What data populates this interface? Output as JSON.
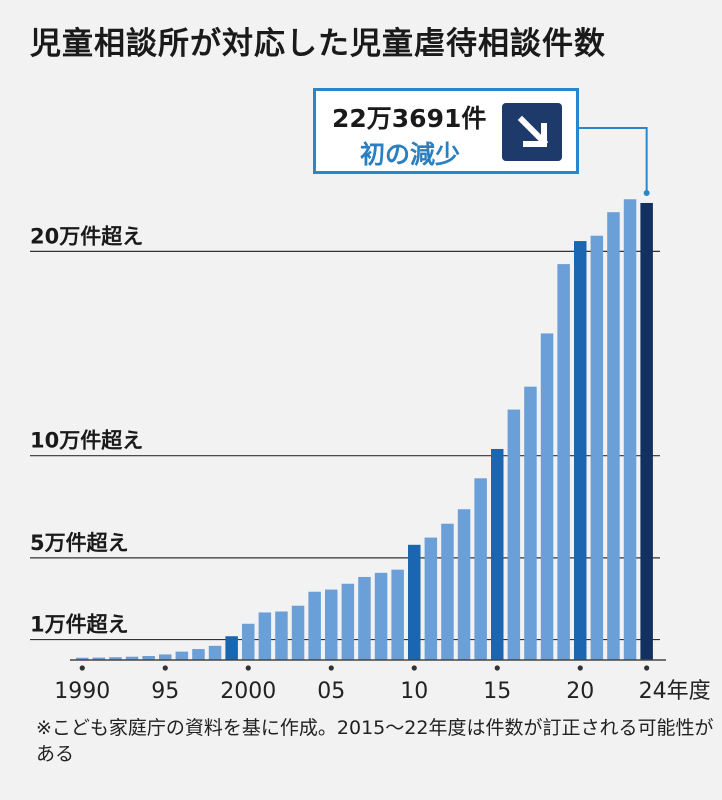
{
  "title": "児童相談所が対応した児童虐待相談件数",
  "callout": {
    "value": "22万3691件",
    "description": "初の減少",
    "icon": "arrow-down-right-icon"
  },
  "note": "※こども家庭庁の資料を基に作成。2015～22年度は件数が訂正される可能性がある",
  "colors": {
    "bar": "#6a9fd8",
    "bar_highlight": "#1a66b0",
    "bar_latest": "#13315e",
    "callout_border": "#2a86c8",
    "callout_text": "#2a7fc0"
  },
  "chart_data": {
    "type": "bar",
    "unit": "件",
    "x": [
      1990,
      1991,
      1992,
      1993,
      1994,
      1995,
      1996,
      1997,
      1998,
      1999,
      2000,
      2001,
      2002,
      2003,
      2004,
      2005,
      2006,
      2007,
      2008,
      2009,
      2010,
      2011,
      2012,
      2013,
      2014,
      2015,
      2016,
      2017,
      2018,
      2019,
      2020,
      2021,
      2022,
      2023,
      2024
    ],
    "values": [
      1101,
      1171,
      1372,
      1611,
      1961,
      2722,
      4102,
      5352,
      6932,
      11631,
      17725,
      23274,
      23738,
      26569,
      33408,
      34472,
      37323,
      40639,
      42664,
      44211,
      56384,
      59919,
      66701,
      73802,
      88931,
      103286,
      122575,
      133778,
      159838,
      193780,
      205044,
      207660,
      219170,
      225509,
      223691
    ],
    "highlight_years": [
      1999,
      2010,
      2015,
      2020
    ],
    "latest_year": 2024,
    "x_tick_labels": [
      {
        "year": 1990,
        "label": "1990"
      },
      {
        "year": 1995,
        "label": "95"
      },
      {
        "year": 2000,
        "label": "2000"
      },
      {
        "year": 2005,
        "label": "05"
      },
      {
        "year": 2010,
        "label": "10"
      },
      {
        "year": 2015,
        "label": "15"
      },
      {
        "year": 2020,
        "label": "20"
      },
      {
        "year": 2024,
        "label": "24年度"
      }
    ],
    "reference_lines": [
      {
        "value": 10000,
        "label": "1万件超え"
      },
      {
        "value": 50000,
        "label": "5万件超え"
      },
      {
        "value": 100000,
        "label": "10万件超え"
      },
      {
        "value": 200000,
        "label": "20万件超え"
      }
    ],
    "ylim": [
      0,
      232000
    ]
  }
}
